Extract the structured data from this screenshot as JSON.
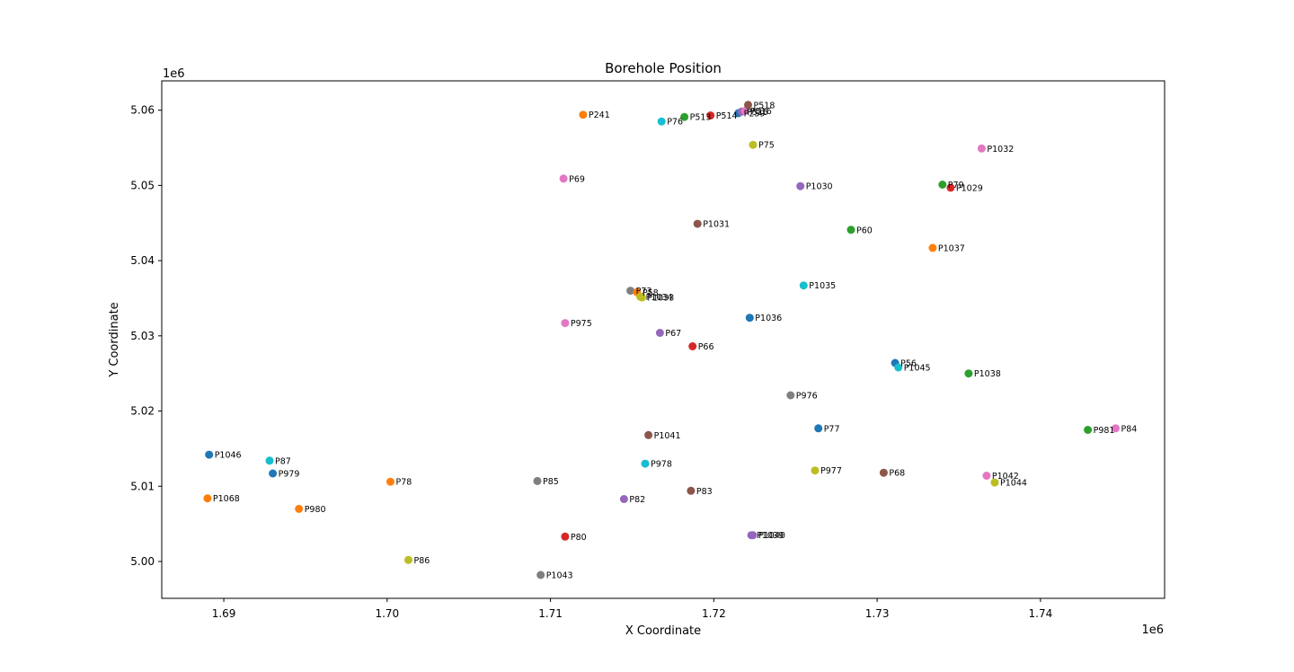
{
  "chart_data": {
    "type": "scatter",
    "title": "Borehole Position",
    "xlabel": "X Coordinate",
    "ylabel": "Y Coordinate",
    "x_offset_label": "1e6",
    "y_offset_label": "1e6",
    "xlim": [
      1.6862,
      1.7476
    ],
    "ylim": [
      4.9951,
      5.0639
    ],
    "x_ticks": [
      1.69,
      1.7,
      1.71,
      1.72,
      1.73,
      1.74
    ],
    "x_tick_labels": [
      "1.69",
      "1.70",
      "1.71",
      "1.72",
      "1.73",
      "1.74"
    ],
    "y_ticks": [
      5.0,
      5.01,
      5.02,
      5.03,
      5.04,
      5.05,
      5.06
    ],
    "y_tick_labels": [
      "5.00",
      "5.01",
      "5.02",
      "5.03",
      "5.04",
      "5.05",
      "5.06"
    ],
    "grid": false,
    "legend": "none",
    "points": [
      {
        "label": "P1046",
        "x": 1.6891,
        "y": 5.0142,
        "color": "#1f77b4"
      },
      {
        "label": "P1068",
        "x": 1.689,
        "y": 5.0084,
        "color": "#ff7f0e"
      },
      {
        "label": "P87",
        "x": 1.6928,
        "y": 5.0134,
        "color": "#17becf"
      },
      {
        "label": "P979",
        "x": 1.693,
        "y": 5.0117,
        "color": "#1f77b4"
      },
      {
        "label": "P980",
        "x": 1.6946,
        "y": 5.007,
        "color": "#ff7f0e"
      },
      {
        "label": "P78",
        "x": 1.7002,
        "y": 5.0106,
        "color": "#ff7f0e"
      },
      {
        "label": "P86",
        "x": 1.7013,
        "y": 5.0002,
        "color": "#bcbd22"
      },
      {
        "label": "P85",
        "x": 1.7092,
        "y": 5.0107,
        "color": "#7f7f7f"
      },
      {
        "label": "P1043",
        "x": 1.7094,
        "y": 4.9982,
        "color": "#7f7f7f"
      },
      {
        "label": "P80",
        "x": 1.7109,
        "y": 5.0033,
        "color": "#d62728"
      },
      {
        "label": "P975",
        "x": 1.7109,
        "y": 5.0317,
        "color": "#e377c2"
      },
      {
        "label": "P69",
        "x": 1.7108,
        "y": 5.0509,
        "color": "#e377c2"
      },
      {
        "label": "P241",
        "x": 1.712,
        "y": 5.0594,
        "color": "#ff7f0e"
      },
      {
        "label": "P82",
        "x": 1.7145,
        "y": 5.0083,
        "color": "#9467bd"
      },
      {
        "label": "P73",
        "x": 1.7149,
        "y": 5.036,
        "color": "#7f7f7f"
      },
      {
        "label": "P58",
        "x": 1.7153,
        "y": 5.0358,
        "color": "#ff7f0e"
      },
      {
        "label": "P1034",
        "x": 1.7155,
        "y": 5.0352,
        "color": "#bcbd22"
      },
      {
        "label": "P1033",
        "x": 1.7156,
        "y": 5.0351,
        "color": "#bcbd22"
      },
      {
        "label": "P978",
        "x": 1.7158,
        "y": 5.013,
        "color": "#17becf"
      },
      {
        "label": "P1041",
        "x": 1.716,
        "y": 5.0168,
        "color": "#8c564b"
      },
      {
        "label": "P67",
        "x": 1.7167,
        "y": 5.0304,
        "color": "#9467bd"
      },
      {
        "label": "P76",
        "x": 1.7168,
        "y": 5.0585,
        "color": "#17becf"
      },
      {
        "label": "P513",
        "x": 1.7182,
        "y": 5.0591,
        "color": "#2ca02c"
      },
      {
        "label": "P83",
        "x": 1.7186,
        "y": 5.0094,
        "color": "#8c564b"
      },
      {
        "label": "P66",
        "x": 1.7187,
        "y": 5.0286,
        "color": "#d62728"
      },
      {
        "label": "P1031",
        "x": 1.719,
        "y": 5.0449,
        "color": "#8c564b"
      },
      {
        "label": "P514",
        "x": 1.7198,
        "y": 5.0593,
        "color": "#d62728"
      },
      {
        "label": "P259",
        "x": 1.7215,
        "y": 5.0596,
        "color": "#1f77b4"
      },
      {
        "label": "P515",
        "x": 1.7217,
        "y": 5.0598,
        "color": "#9467bd"
      },
      {
        "label": "P516",
        "x": 1.7219,
        "y": 5.0599,
        "color": "#e377c2"
      },
      {
        "label": "P518",
        "x": 1.7221,
        "y": 5.0607,
        "color": "#8c564b"
      },
      {
        "label": "P1036",
        "x": 1.7222,
        "y": 5.0324,
        "color": "#1f77b4"
      },
      {
        "label": "P1039",
        "x": 1.7223,
        "y": 5.0035,
        "color": "#9467bd"
      },
      {
        "label": "P1040",
        "x": 1.7224,
        "y": 5.0035,
        "color": "#9467bd"
      },
      {
        "label": "P75",
        "x": 1.7224,
        "y": 5.0554,
        "color": "#bcbd22"
      },
      {
        "label": "P976",
        "x": 1.7247,
        "y": 5.0221,
        "color": "#7f7f7f"
      },
      {
        "label": "P1030",
        "x": 1.7253,
        "y": 5.0499,
        "color": "#9467bd"
      },
      {
        "label": "P1035",
        "x": 1.7255,
        "y": 5.0367,
        "color": "#17becf"
      },
      {
        "label": "P977",
        "x": 1.7262,
        "y": 5.0121,
        "color": "#bcbd22"
      },
      {
        "label": "P77",
        "x": 1.7264,
        "y": 5.0177,
        "color": "#1f77b4"
      },
      {
        "label": "P60",
        "x": 1.7284,
        "y": 5.0441,
        "color": "#2ca02c"
      },
      {
        "label": "P68",
        "x": 1.7304,
        "y": 5.0118,
        "color": "#8c564b"
      },
      {
        "label": "P56",
        "x": 1.7311,
        "y": 5.0264,
        "color": "#1f77b4"
      },
      {
        "label": "P1045",
        "x": 1.7313,
        "y": 5.0258,
        "color": "#17becf"
      },
      {
        "label": "P1037",
        "x": 1.7334,
        "y": 5.0417,
        "color": "#ff7f0e"
      },
      {
        "label": "P79",
        "x": 1.734,
        "y": 5.0501,
        "color": "#2ca02c"
      },
      {
        "label": "P1029",
        "x": 1.7345,
        "y": 5.0497,
        "color": "#d62728"
      },
      {
        "label": "P1038",
        "x": 1.7356,
        "y": 5.025,
        "color": "#2ca02c"
      },
      {
        "label": "P1032",
        "x": 1.7364,
        "y": 5.0549,
        "color": "#e377c2"
      },
      {
        "label": "P1042",
        "x": 1.7367,
        "y": 5.0114,
        "color": "#e377c2"
      },
      {
        "label": "P1044",
        "x": 1.7372,
        "y": 5.0105,
        "color": "#bcbd22"
      },
      {
        "label": "P981",
        "x": 1.7429,
        "y": 5.0175,
        "color": "#2ca02c"
      },
      {
        "label": "P84",
        "x": 1.7446,
        "y": 5.0177,
        "color": "#e377c2"
      }
    ]
  }
}
